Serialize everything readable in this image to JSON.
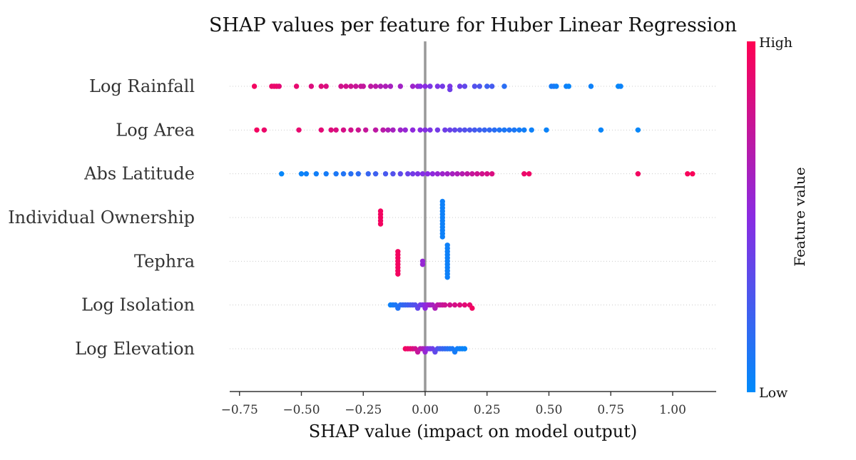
{
  "chart_data": {
    "type": "scatter",
    "subtype": "beeswarm",
    "title": "SHAP values per feature for Huber Linear Regression",
    "xlabel": "SHAP value (impact on model output)",
    "ylabel": "",
    "xlim": [
      -0.78,
      1.18
    ],
    "xticks": [
      -0.75,
      -0.5,
      -0.25,
      0.0,
      0.25,
      0.5,
      0.75,
      1.0
    ],
    "xtick_labels": [
      "−0.75",
      "−0.50",
      "−0.25",
      "0.00",
      "0.25",
      "0.50",
      "0.75",
      "1.00"
    ],
    "grid": false,
    "zero_line": true,
    "colorbar": {
      "title": "Feature value",
      "high_label": "High",
      "low_label": "Low",
      "high_color": "#ff0052",
      "mid_color": "#8a2be2",
      "low_color": "#008bfb"
    },
    "features": [
      {
        "name": "Log Rainfall",
        "points": [
          [
            -0.69,
            0.95
          ],
          [
            -0.62,
            0.92
          ],
          [
            -0.61,
            0.9
          ],
          [
            -0.6,
            0.93
          ],
          [
            -0.59,
            0.88
          ],
          [
            -0.52,
            0.9
          ],
          [
            -0.46,
            0.85
          ],
          [
            -0.42,
            0.86
          ],
          [
            -0.4,
            0.84
          ],
          [
            -0.34,
            0.8
          ],
          [
            -0.32,
            0.8
          ],
          [
            -0.3,
            0.78
          ],
          [
            -0.28,
            0.76
          ],
          [
            -0.26,
            0.75
          ],
          [
            -0.25,
            0.74
          ],
          [
            -0.22,
            0.72
          ],
          [
            -0.2,
            0.7
          ],
          [
            -0.18,
            0.66
          ],
          [
            -0.16,
            0.65
          ],
          [
            -0.14,
            0.62
          ],
          [
            -0.1,
            0.6
          ],
          [
            -0.05,
            0.58
          ],
          [
            -0.03,
            0.55
          ],
          [
            -0.02,
            0.5
          ],
          [
            0.0,
            0.5
          ],
          [
            0.02,
            0.45
          ],
          [
            0.05,
            0.45
          ],
          [
            0.07,
            0.42
          ],
          [
            0.1,
            0.45
          ],
          [
            0.1,
            0.4
          ],
          [
            0.14,
            0.4
          ],
          [
            0.16,
            0.35
          ],
          [
            0.2,
            0.3
          ],
          [
            0.22,
            0.28
          ],
          [
            0.25,
            0.22
          ],
          [
            0.27,
            0.25
          ],
          [
            0.32,
            0.15
          ],
          [
            0.51,
            0.08
          ],
          [
            0.52,
            0.1
          ],
          [
            0.53,
            0.05
          ],
          [
            0.57,
            0.05
          ],
          [
            0.58,
            0.03
          ],
          [
            0.67,
            0.05
          ],
          [
            0.78,
            0.02
          ],
          [
            0.79,
            0.04
          ]
        ]
      },
      {
        "name": "Log Area",
        "points": [
          [
            -0.68,
            0.95
          ],
          [
            -0.65,
            0.92
          ],
          [
            -0.51,
            0.9
          ],
          [
            -0.42,
            0.88
          ],
          [
            -0.38,
            0.86
          ],
          [
            -0.36,
            0.84
          ],
          [
            -0.33,
            0.82
          ],
          [
            -0.3,
            0.8
          ],
          [
            -0.27,
            0.78
          ],
          [
            -0.24,
            0.75
          ],
          [
            -0.2,
            0.72
          ],
          [
            -0.17,
            0.7
          ],
          [
            -0.15,
            0.65
          ],
          [
            -0.13,
            0.62
          ],
          [
            -0.1,
            0.58
          ],
          [
            -0.08,
            0.55
          ],
          [
            -0.05,
            0.52
          ],
          [
            -0.02,
            0.5
          ],
          [
            0.0,
            0.48
          ],
          [
            0.02,
            0.45
          ],
          [
            0.05,
            0.42
          ],
          [
            0.08,
            0.4
          ],
          [
            0.1,
            0.38
          ],
          [
            0.12,
            0.35
          ],
          [
            0.14,
            0.32
          ],
          [
            0.16,
            0.3
          ],
          [
            0.18,
            0.28
          ],
          [
            0.2,
            0.25
          ],
          [
            0.22,
            0.22
          ],
          [
            0.24,
            0.2
          ],
          [
            0.26,
            0.18
          ],
          [
            0.28,
            0.15
          ],
          [
            0.3,
            0.12
          ],
          [
            0.32,
            0.1
          ],
          [
            0.34,
            0.12
          ],
          [
            0.36,
            0.1
          ],
          [
            0.38,
            0.08
          ],
          [
            0.4,
            0.06
          ],
          [
            0.43,
            0.05
          ],
          [
            0.49,
            0.04
          ],
          [
            0.71,
            0.03
          ],
          [
            0.86,
            0.02
          ]
        ]
      },
      {
        "name": "Abs Latitude",
        "points": [
          [
            -0.58,
            0.02
          ],
          [
            -0.5,
            0.04
          ],
          [
            -0.48,
            0.05
          ],
          [
            -0.44,
            0.06
          ],
          [
            -0.4,
            0.08
          ],
          [
            -0.36,
            0.1
          ],
          [
            -0.33,
            0.12
          ],
          [
            -0.3,
            0.14
          ],
          [
            -0.27,
            0.16
          ],
          [
            -0.23,
            0.2
          ],
          [
            -0.2,
            0.22
          ],
          [
            -0.16,
            0.26
          ],
          [
            -0.13,
            0.3
          ],
          [
            -0.1,
            0.34
          ],
          [
            -0.07,
            0.38
          ],
          [
            -0.05,
            0.42
          ],
          [
            -0.03,
            0.45
          ],
          [
            -0.01,
            0.48
          ],
          [
            0.01,
            0.5
          ],
          [
            0.03,
            0.52
          ],
          [
            0.05,
            0.55
          ],
          [
            0.07,
            0.58
          ],
          [
            0.09,
            0.6
          ],
          [
            0.11,
            0.62
          ],
          [
            0.13,
            0.65
          ],
          [
            0.15,
            0.68
          ],
          [
            0.17,
            0.72
          ],
          [
            0.19,
            0.75
          ],
          [
            0.21,
            0.78
          ],
          [
            0.23,
            0.8
          ],
          [
            0.25,
            0.82
          ],
          [
            0.27,
            0.84
          ],
          [
            0.4,
            0.92
          ],
          [
            0.42,
            0.93
          ],
          [
            0.86,
            0.95
          ],
          [
            1.06,
            0.97
          ],
          [
            1.08,
            0.98
          ]
        ]
      },
      {
        "name": "Individual Ownership",
        "points": [
          [
            -0.18,
            0.95
          ],
          [
            -0.18,
            0.95
          ],
          [
            -0.18,
            0.95
          ],
          [
            -0.18,
            0.95
          ],
          [
            -0.18,
            0.95
          ],
          [
            0.07,
            0.05
          ],
          [
            0.07,
            0.05
          ],
          [
            0.07,
            0.05
          ],
          [
            0.07,
            0.05
          ],
          [
            0.07,
            0.05
          ],
          [
            0.07,
            0.05
          ],
          [
            0.07,
            0.05
          ],
          [
            0.07,
            0.05
          ],
          [
            0.07,
            0.05
          ],
          [
            0.07,
            0.05
          ],
          [
            0.07,
            0.05
          ],
          [
            0.07,
            0.05
          ]
        ]
      },
      {
        "name": "Tephra",
        "points": [
          [
            -0.11,
            0.95
          ],
          [
            -0.11,
            0.95
          ],
          [
            -0.11,
            0.95
          ],
          [
            -0.11,
            0.95
          ],
          [
            -0.11,
            0.95
          ],
          [
            -0.11,
            0.95
          ],
          [
            -0.11,
            0.95
          ],
          [
            -0.11,
            0.95
          ],
          [
            -0.01,
            0.55
          ],
          [
            -0.01,
            0.55
          ],
          [
            0.09,
            0.05
          ],
          [
            0.09,
            0.05
          ],
          [
            0.09,
            0.05
          ],
          [
            0.09,
            0.05
          ],
          [
            0.09,
            0.05
          ],
          [
            0.09,
            0.05
          ],
          [
            0.09,
            0.05
          ],
          [
            0.09,
            0.05
          ],
          [
            0.09,
            0.05
          ],
          [
            0.09,
            0.05
          ],
          [
            0.09,
            0.05
          ]
        ]
      },
      {
        "name": "Log Isolation",
        "points": [
          [
            -0.14,
            0.05
          ],
          [
            -0.13,
            0.08
          ],
          [
            -0.12,
            0.1
          ],
          [
            -0.11,
            0.12
          ],
          [
            -0.1,
            0.15
          ],
          [
            -0.09,
            0.18
          ],
          [
            -0.08,
            0.2
          ],
          [
            -0.07,
            0.22
          ],
          [
            -0.06,
            0.25
          ],
          [
            -0.05,
            0.28
          ],
          [
            -0.04,
            0.3
          ],
          [
            -0.03,
            0.35
          ],
          [
            -0.02,
            0.4
          ],
          [
            -0.01,
            0.45
          ],
          [
            0.0,
            0.5
          ],
          [
            0.0,
            0.52
          ],
          [
            0.01,
            0.55
          ],
          [
            0.02,
            0.6
          ],
          [
            0.03,
            0.62
          ],
          [
            0.04,
            0.65
          ],
          [
            0.05,
            0.7
          ],
          [
            0.06,
            0.72
          ],
          [
            0.07,
            0.75
          ],
          [
            0.08,
            0.78
          ],
          [
            0.1,
            0.8
          ],
          [
            0.12,
            0.82
          ],
          [
            0.14,
            0.85
          ],
          [
            0.16,
            0.88
          ],
          [
            0.18,
            0.9
          ],
          [
            0.19,
            0.95
          ]
        ]
      },
      {
        "name": "Log Elevation",
        "points": [
          [
            -0.08,
            0.95
          ],
          [
            -0.07,
            0.92
          ],
          [
            -0.06,
            0.9
          ],
          [
            -0.05,
            0.85
          ],
          [
            -0.04,
            0.8
          ],
          [
            -0.03,
            0.75
          ],
          [
            -0.02,
            0.7
          ],
          [
            -0.01,
            0.65
          ],
          [
            0.0,
            0.6
          ],
          [
            0.0,
            0.55
          ],
          [
            0.01,
            0.5
          ],
          [
            0.02,
            0.45
          ],
          [
            0.03,
            0.4
          ],
          [
            0.04,
            0.35
          ],
          [
            0.05,
            0.3
          ],
          [
            0.06,
            0.25
          ],
          [
            0.07,
            0.2
          ],
          [
            0.08,
            0.18
          ],
          [
            0.09,
            0.15
          ],
          [
            0.1,
            0.12
          ],
          [
            0.11,
            0.1
          ],
          [
            0.12,
            0.08
          ],
          [
            0.13,
            0.06
          ],
          [
            0.14,
            0.05
          ],
          [
            0.15,
            0.04
          ],
          [
            0.16,
            0.03
          ]
        ]
      }
    ]
  }
}
